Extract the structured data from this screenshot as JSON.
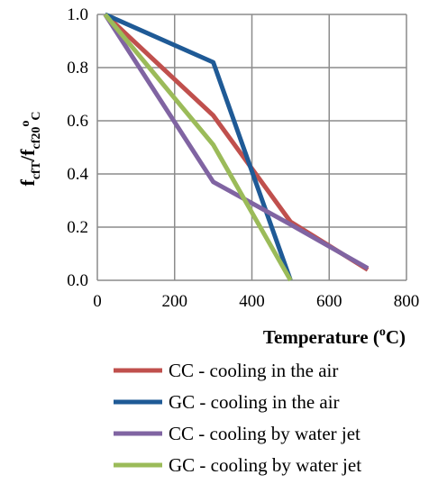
{
  "chart_data": {
    "type": "line",
    "title": "",
    "xlabel": "Temperature (",
    "xlabel_sup": "o",
    "xlabel_end": "C)",
    "ylabel_main": "f",
    "ylabel_sub1": "cfT",
    "ylabel_sep": "/f",
    "ylabel_sub2": "cf20",
    "ylabel_sup": "o",
    "ylabel_sub3": "C",
    "xlim": [
      0,
      800
    ],
    "ylim": [
      0,
      1.0
    ],
    "xticks": [
      "0",
      "200",
      "400",
      "600",
      "800"
    ],
    "yticks": [
      "0.0",
      "0.2",
      "0.4",
      "0.6",
      "0.8",
      "1.0"
    ],
    "grid": true,
    "legend_position": "bottom",
    "series": [
      {
        "name": "CC - cooling in the air",
        "color": "#c0504d",
        "x": [
          20,
          300,
          500,
          700
        ],
        "y": [
          1.0,
          0.62,
          0.22,
          0.04
        ]
      },
      {
        "name": "GC - cooling in the air",
        "color": "#1f5a96",
        "x": [
          20,
          300,
          500
        ],
        "y": [
          1.0,
          0.82,
          0.0
        ]
      },
      {
        "name": "CC - cooling by water jet",
        "color": "#8064a2",
        "x": [
          20,
          300,
          500,
          700
        ],
        "y": [
          1.0,
          0.37,
          0.21,
          0.045
        ]
      },
      {
        "name": "GC - cooling by water jet",
        "color": "#9bbb59",
        "x": [
          20,
          300,
          500
        ],
        "y": [
          1.0,
          0.51,
          0.0
        ]
      }
    ]
  }
}
